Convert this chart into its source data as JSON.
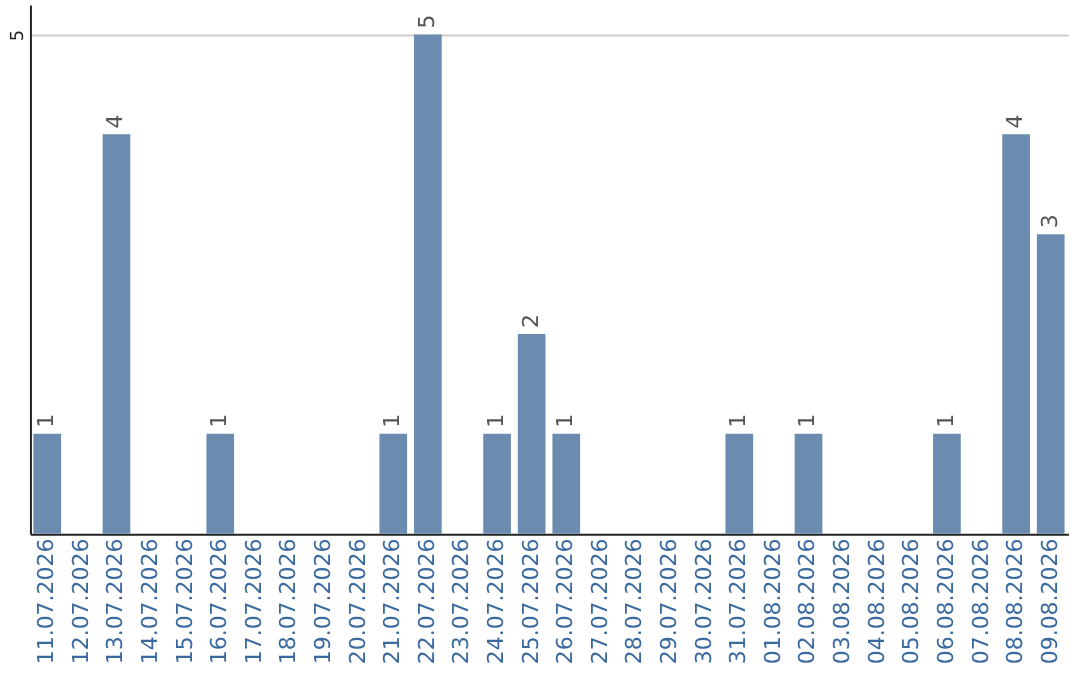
{
  "chart_data": {
    "type": "bar",
    "categories": [
      "11.07.2026",
      "12.07.2026",
      "13.07.2026",
      "14.07.2026",
      "15.07.2026",
      "16.07.2026",
      "17.07.2026",
      "18.07.2026",
      "19.07.2026",
      "20.07.2026",
      "21.07.2026",
      "22.07.2026",
      "23.07.2026",
      "24.07.2026",
      "25.07.2026",
      "26.07.2026",
      "27.07.2026",
      "28.07.2026",
      "29.07.2026",
      "30.07.2026",
      "31.07.2026",
      "01.08.2026",
      "02.08.2026",
      "03.08.2026",
      "04.08.2026",
      "05.08.2026",
      "06.08.2026",
      "07.08.2026",
      "08.08.2026",
      "09.08.2026"
    ],
    "values": [
      1,
      0,
      4,
      0,
      0,
      1,
      0,
      0,
      0,
      0,
      1,
      5,
      0,
      1,
      2,
      1,
      0,
      0,
      0,
      0,
      1,
      0,
      1,
      0,
      0,
      0,
      1,
      0,
      4,
      3
    ],
    "value_labels": [
      "1",
      null,
      "4",
      null,
      null,
      "1",
      null,
      null,
      null,
      null,
      "1",
      "5",
      null,
      "1",
      "2",
      "1",
      null,
      null,
      null,
      null,
      "1",
      null,
      "1",
      null,
      null,
      null,
      "1",
      null,
      "4",
      "3"
    ],
    "color": "#6b8cae",
    "ylim": [
      0,
      5.3
    ],
    "yticks": [
      5
    ],
    "grid": "y"
  }
}
